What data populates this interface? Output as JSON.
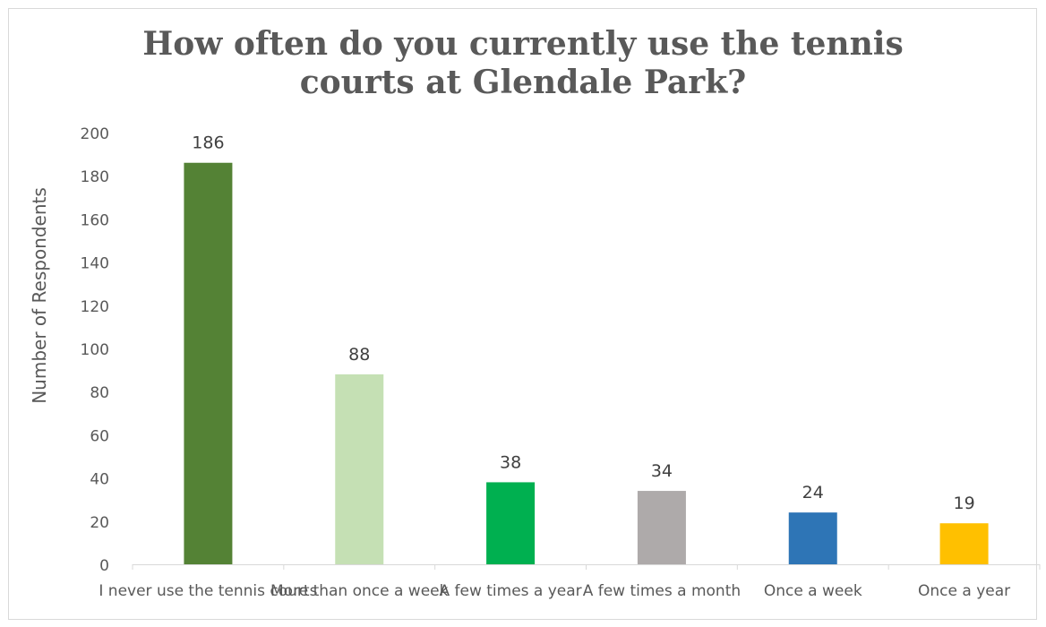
{
  "chart_data": {
    "type": "bar",
    "title_lines": [
      "How often do you currently use the tennis",
      "courts at Glendale Park?"
    ],
    "xlabel": "",
    "ylabel": "Number of Respondents",
    "ylim": [
      0,
      200
    ],
    "yticks": [
      0,
      20,
      40,
      60,
      80,
      100,
      120,
      140,
      160,
      180,
      200
    ],
    "grid": false,
    "legend": "none",
    "categories": [
      "I never use the tennis courts",
      "More than once a week",
      "A few times a year",
      "A few times a month",
      "Once a week",
      "Once a year"
    ],
    "values": [
      186,
      88,
      38,
      34,
      24,
      19
    ],
    "colors": [
      "#548235",
      "#c5e0b4",
      "#00b050",
      "#aeaaaa",
      "#2e75b6",
      "#ffc000"
    ]
  }
}
